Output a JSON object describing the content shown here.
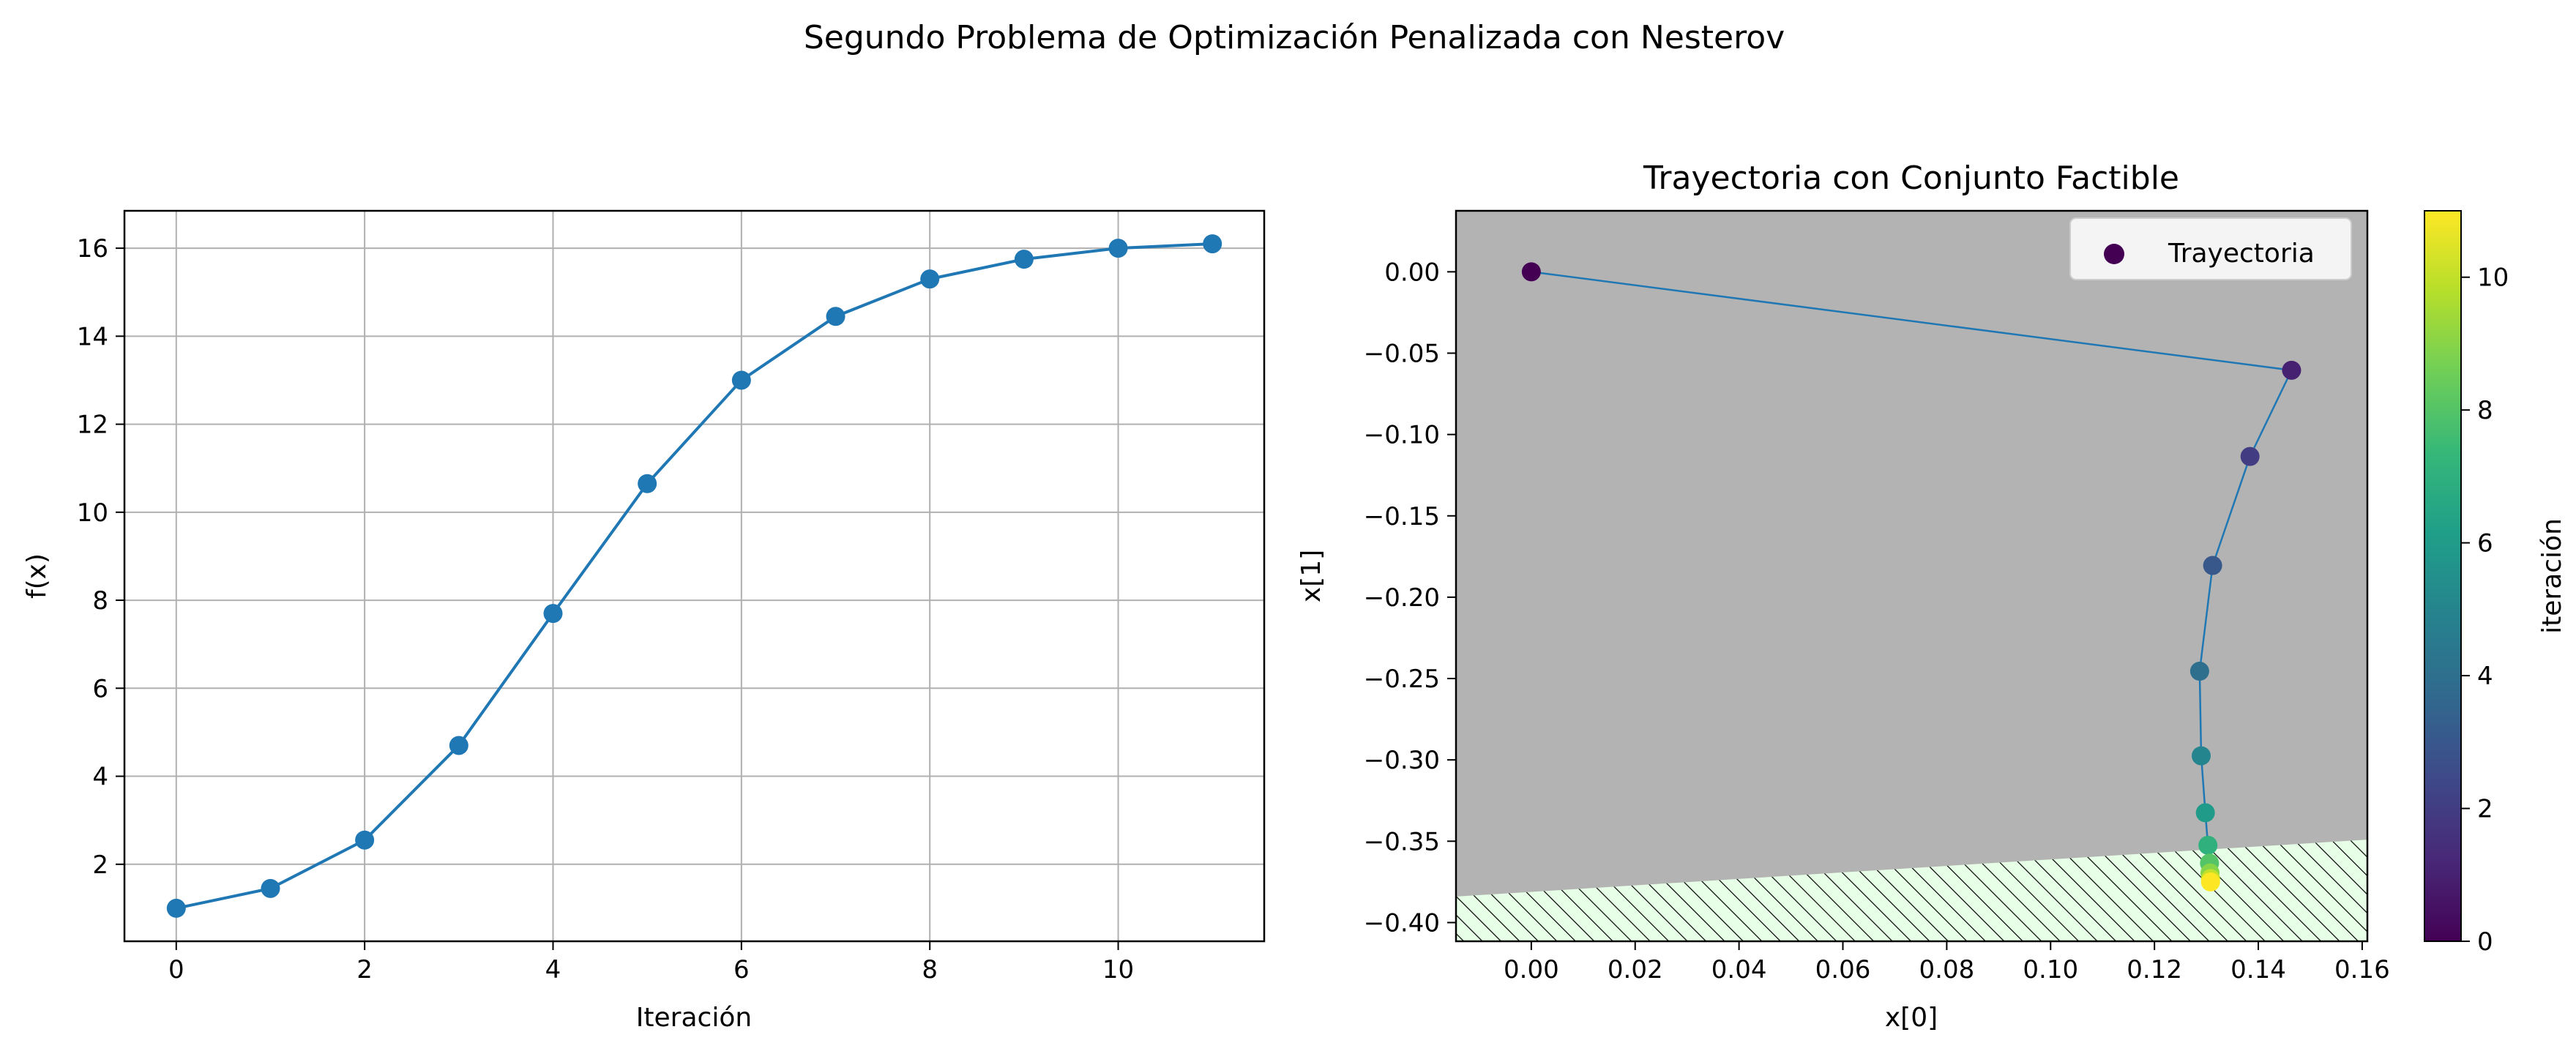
{
  "figure": {
    "suptitle": "Segundo Problema de Optimización Penalizada con Nesterov"
  },
  "colors": {
    "series": "#1f77b4",
    "grid": "#b0b0b0",
    "infeasible_region": "#b3b3b3",
    "feasible_region": "#e6ffe6",
    "colormap": [
      "#440154",
      "#482878",
      "#3e4989",
      "#31688e",
      "#26828e",
      "#1f9e89",
      "#35b779",
      "#6ece58",
      "#b5de2b",
      "#fde725"
    ]
  },
  "chart_data": [
    {
      "type": "line",
      "title": "",
      "xlabel": "Iteración",
      "ylabel": "f(x)",
      "grid": true,
      "x": [
        0,
        1,
        2,
        3,
        4,
        5,
        6,
        7,
        8,
        9,
        10,
        11
      ],
      "y": [
        1.0,
        1.45,
        2.55,
        4.7,
        7.7,
        10.65,
        13.0,
        14.45,
        15.3,
        15.75,
        16.0,
        16.1
      ],
      "xlim": [
        -0.55,
        11.55
      ],
      "ylim": [
        0.25,
        16.85
      ],
      "xticks": [
        0,
        2,
        4,
        6,
        8,
        10
      ],
      "yticks": [
        2,
        4,
        6,
        8,
        10,
        12,
        14,
        16
      ],
      "xtick_labels": [
        "0",
        "2",
        "4",
        "6",
        "8",
        "10"
      ],
      "ytick_labels": [
        "2",
        "4",
        "6",
        "8",
        "10",
        "12",
        "14",
        "16"
      ]
    },
    {
      "type": "scatter",
      "title": "Trayectoria con Conjunto Factible",
      "xlabel": "x[0]",
      "ylabel": "x[1]",
      "grid": false,
      "legend": {
        "position": "top-right",
        "entries": [
          "Trayectoria"
        ]
      },
      "colorbar": {
        "label": "iteración",
        "range": [
          0,
          11
        ],
        "ticks": [
          0,
          2,
          4,
          6,
          8,
          10
        ],
        "tick_labels": [
          "0",
          "2",
          "4",
          "6",
          "8",
          "10"
        ]
      },
      "x": [
        0.0,
        0.1464,
        0.1384,
        0.1312,
        0.1287,
        0.129,
        0.1298,
        0.1303,
        0.1306,
        0.1307,
        0.1308,
        0.1308
      ],
      "y": [
        0.0,
        -0.0605,
        -0.1135,
        -0.1805,
        -0.2455,
        -0.2975,
        -0.3325,
        -0.3525,
        -0.3635,
        -0.3695,
        -0.373,
        -0.375
      ],
      "iteration": [
        0,
        1,
        2,
        3,
        4,
        5,
        6,
        7,
        8,
        9,
        10,
        11
      ],
      "feasible_boundary": {
        "x": [
          -0.0145,
          0.161
        ],
        "y": [
          -0.384,
          -0.349
        ]
      },
      "xlim": [
        -0.0145,
        0.161
      ],
      "ylim": [
        -0.4115,
        0.0375
      ],
      "xticks": [
        0.0,
        0.02,
        0.04,
        0.06,
        0.08,
        0.1,
        0.12,
        0.14,
        0.16
      ],
      "yticks": [
        0.0,
        -0.05,
        -0.1,
        -0.15,
        -0.2,
        -0.25,
        -0.3,
        -0.35,
        -0.4
      ],
      "xtick_labels": [
        "0.00",
        "0.02",
        "0.04",
        "0.06",
        "0.08",
        "0.10",
        "0.12",
        "0.14",
        "0.16"
      ],
      "ytick_labels": [
        "0.00",
        "−0.05",
        "−0.10",
        "−0.15",
        "−0.20",
        "−0.25",
        "−0.30",
        "−0.35",
        "−0.40"
      ]
    }
  ]
}
